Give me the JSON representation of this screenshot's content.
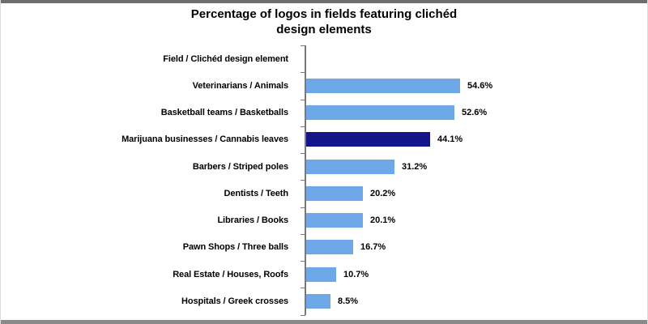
{
  "frame": {
    "top_strip_color": "#6e6e6e",
    "bottom_strip_color": "#8a8a8a"
  },
  "chart_data": {
    "type": "bar",
    "orientation": "horizontal",
    "title": "Percentage of logos in fields featuring clichéd design elements",
    "title_lines": [
      "Percentage of logos in fields featuring clichéd",
      "design elements"
    ],
    "categories": [
      "Field / Clichéd design element",
      "Veterinarians / Animals",
      "Basketball teams / Basketballs",
      "Marijuana businesses / Cannabis leaves",
      "Barbers / Striped poles",
      "Dentists / Teeth",
      "Libraries / Books",
      "Pawn Shops / Three balls",
      "Real Estate / Houses, Roofs",
      "Hospitals / Greek crosses"
    ],
    "values": [
      null,
      54.6,
      52.6,
      44.1,
      31.2,
      20.2,
      20.1,
      16.7,
      10.7,
      8.5
    ],
    "value_labels": [
      "",
      "54.6%",
      "52.6%",
      "44.1%",
      "31.2%",
      "20.2%",
      "20.1%",
      "16.7%",
      "10.7%",
      "8.5%"
    ],
    "bar_color": "#6FA8E8",
    "highlight_color": "#14148B",
    "highlight_index": 3,
    "axis_color": "#7a7a7a",
    "xlim": [
      0,
      60
    ],
    "grid": false,
    "legend": "none"
  }
}
